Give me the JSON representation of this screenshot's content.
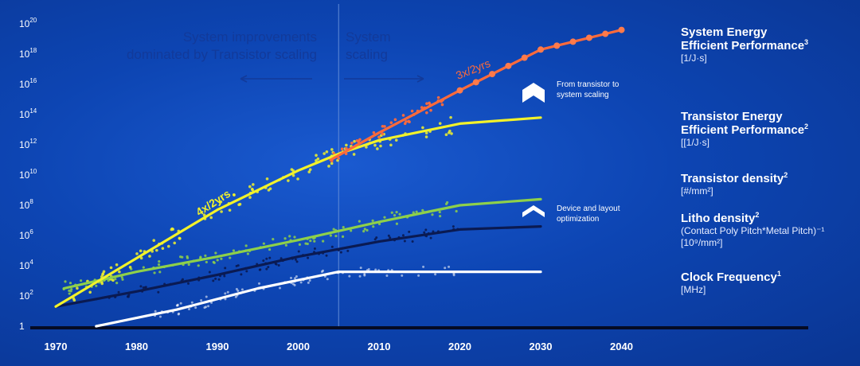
{
  "chart_data": {
    "type": "line",
    "x_ticks": [
      "1970",
      "1980",
      "1990",
      "2000",
      "2010",
      "2020",
      "2030",
      "2040"
    ],
    "y_ticks": [
      {
        "value": 1,
        "base": "1",
        "exp": ""
      },
      {
        "value": 100,
        "base": "10",
        "exp": "2"
      },
      {
        "value": 10000,
        "base": "10",
        "exp": "4"
      },
      {
        "value": 1000000,
        "base": "10",
        "exp": "6"
      },
      {
        "value": 100000000,
        "base": "10",
        "exp": "8"
      },
      {
        "value": 10000000000,
        "base": "10",
        "exp": "10"
      },
      {
        "value": 1000000000000,
        "base": "10",
        "exp": "12"
      },
      {
        "value": 100000000000000,
        "base": "10",
        "exp": "14"
      },
      {
        "value": 10000000000000000,
        "base": "10",
        "exp": "16"
      },
      {
        "value": 1000000000000000000,
        "base": "10",
        "exp": "18"
      },
      {
        "value": 100000000000000000000,
        "base": "10",
        "exp": "20"
      }
    ],
    "x_range": [
      1970,
      2044
    ],
    "y_scale": "log",
    "y_range_exponent": [
      0,
      20
    ],
    "divider_year": 2005,
    "series": [
      {
        "key": "system",
        "color": "#ff6a3a",
        "trend_x": [
          2004,
          2010,
          2020,
          2030,
          2040
        ],
        "trend_y_exp": [
          11,
          12.8,
          15.6,
          18.3,
          19.6
        ]
      },
      {
        "key": "transistor_energy",
        "color": "#f2f22a",
        "trend_x": [
          1970,
          1980,
          1990,
          2000,
          2005,
          2010,
          2020,
          2030
        ],
        "trend_y_exp": [
          1.3,
          4.5,
          7.7,
          10.3,
          11.4,
          12.3,
          13.4,
          13.8
        ]
      },
      {
        "key": "transistor_density",
        "color": "#8ed04a",
        "trend_x": [
          1971,
          1980,
          1990,
          2000,
          2010,
          2020,
          2030
        ],
        "trend_y_exp": [
          2.5,
          3.6,
          4.6,
          5.7,
          6.9,
          8.0,
          8.4
        ]
      },
      {
        "key": "litho_density",
        "color": "#0a1a52",
        "trend_x": [
          1970,
          1980,
          1990,
          2000,
          2010,
          2020,
          2030
        ],
        "trend_y_exp": [
          1.3,
          2.3,
          3.4,
          4.6,
          5.6,
          6.4,
          6.6
        ]
      },
      {
        "key": "clock",
        "color": "#ffffff",
        "trend_x": [
          1975,
          1985,
          1995,
          2005,
          2010,
          2020,
          2030
        ],
        "trend_y_exp": [
          0,
          1.1,
          2.5,
          3.6,
          3.6,
          3.6,
          3.6
        ]
      }
    ],
    "annotations": {
      "yellow_rate": "4x/2yrs",
      "orange_rate": "3x/2yrs"
    }
  },
  "regions": {
    "left": "System improvements\ndominated by Transistor scaling",
    "right": "System\nscaling"
  },
  "notes": {
    "upper": "From transistor to\nsystem scaling",
    "lower": "Device and layout\noptimization"
  },
  "legend": [
    {
      "title": "System Energy\nEfficient Performance",
      "sup": "3",
      "unit": "[1/J·s]"
    },
    {
      "title": "Transistor Energy\nEfficient Performance",
      "sup": "2",
      "unit": "[[1/J·s]"
    },
    {
      "title": "Transistor density",
      "sup": "2",
      "unit": "[#/mm²]"
    },
    {
      "title": "Litho density",
      "sup": "2",
      "unit": "(Contact Poly Pitch*Metal Pitch)⁻¹\n[10⁹/mm²]"
    },
    {
      "title": "Clock Frequency",
      "sup": "1",
      "unit": "[MHz]"
    }
  ]
}
